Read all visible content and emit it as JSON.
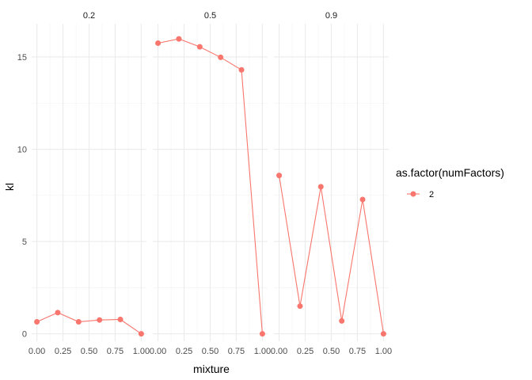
{
  "chart_data": {
    "type": "line",
    "facet_by": "",
    "panels": [
      "0.2",
      "0.5",
      "0.9"
    ],
    "x": [
      0.0,
      0.2,
      0.4,
      0.6,
      0.8,
      1.0
    ],
    "xlabel": "mixture",
    "ylabel": "kl",
    "xticks": [
      "0.00",
      "0.25",
      "0.50",
      "0.75",
      "1.00"
    ],
    "xtick_values": [
      0.0,
      0.25,
      0.5,
      0.75,
      1.0
    ],
    "yticks": [
      "0",
      "5",
      "10",
      "15"
    ],
    "ytick_values": [
      0,
      5,
      10,
      15
    ],
    "xlim": [
      -0.05,
      1.05
    ],
    "ylim": [
      -0.4,
      16.8
    ],
    "grid": true,
    "legend": {
      "title": "as.factor(numFactors)",
      "position": "right",
      "entries": [
        "2"
      ]
    },
    "series_color": "#F8766D",
    "series": [
      {
        "panel": "0.2",
        "values": [
          0.65,
          1.15,
          0.65,
          0.75,
          0.78,
          0.0
        ]
      },
      {
        "panel": "0.5",
        "values": [
          15.75,
          15.98,
          15.55,
          14.98,
          14.3,
          0.0
        ]
      },
      {
        "panel": "0.9",
        "values": [
          8.58,
          1.5,
          7.97,
          0.7,
          7.28,
          0.0
        ]
      }
    ]
  }
}
